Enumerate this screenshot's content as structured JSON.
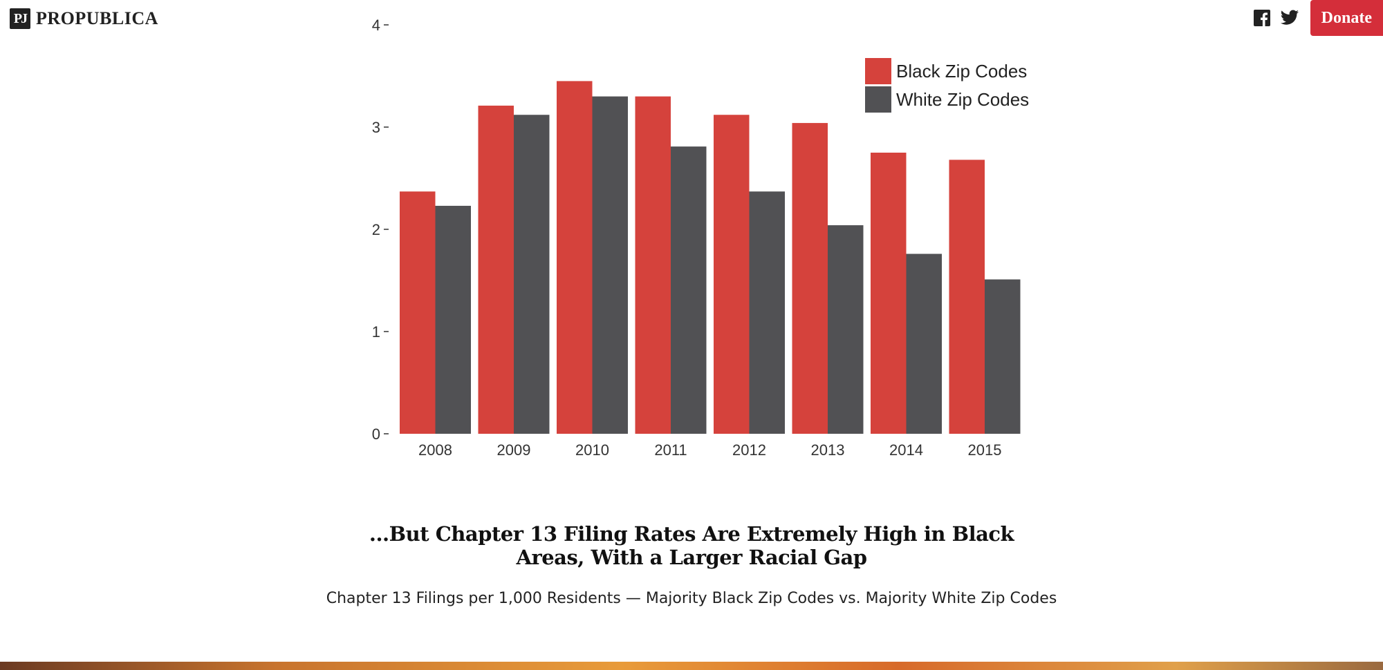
{
  "header": {
    "logo_mark": "PJ",
    "logo_text": "PROPUBLICA",
    "donate_label": "Donate",
    "social": [
      "facebook-icon",
      "twitter-icon"
    ]
  },
  "chart_data": {
    "type": "bar",
    "categories": [
      "2008",
      "2009",
      "2010",
      "2011",
      "2012",
      "2013",
      "2014",
      "2015"
    ],
    "series": [
      {
        "name": "Black Zip Codes",
        "color": "#d5423c",
        "values": [
          2.37,
          3.21,
          3.45,
          3.3,
          3.12,
          3.04,
          2.75,
          2.68
        ]
      },
      {
        "name": "White Zip Codes",
        "color": "#515154",
        "values": [
          2.23,
          3.12,
          3.3,
          2.81,
          2.37,
          2.04,
          1.76,
          1.51
        ]
      }
    ],
    "y_ticks": [
      "0",
      "1",
      "2",
      "3",
      "4"
    ],
    "ylim": [
      0,
      4
    ],
    "legend_position": "top-right",
    "grid": false
  },
  "headline": "...But Chapter 13 Filing Rates Are Extremely High in Black Areas, With a Larger Racial Gap",
  "subhead": "Chapter 13 Filings per 1,000 Residents — Majority Black Zip Codes vs. Majority White Zip Codes"
}
